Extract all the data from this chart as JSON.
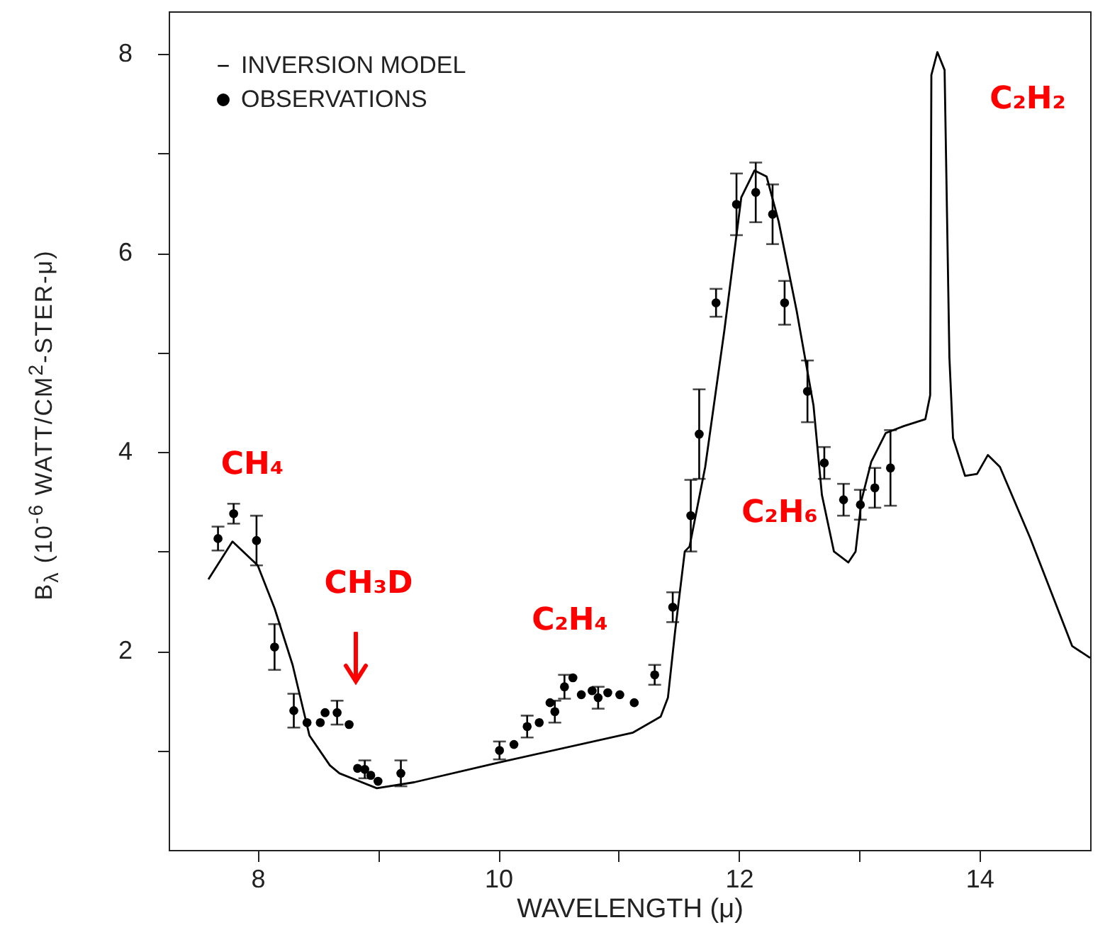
{
  "chart_data": {
    "type": "line",
    "xlabel": "WAVELENGTH (μ)",
    "ylabel": "B$_{λ}$ (10$^{-6}$ WATT/CM$^{2}$-STER-μ)",
    "xlim": [
      7.26,
      14.92
    ],
    "ylim": [
      0,
      8.43
    ],
    "xticks": [
      8,
      {
        "value": 9,
        "label": null
      },
      10,
      {
        "value": 11,
        "label": null
      },
      12,
      {
        "value": 13,
        "label": null
      },
      14
    ],
    "yticks": [
      {
        "value": 1,
        "label": null
      },
      2,
      {
        "value": 3,
        "label": null
      },
      4,
      {
        "value": 5,
        "label": null
      },
      6,
      {
        "value": 7,
        "label": null
      },
      8
    ],
    "grid": false,
    "legend": "top left",
    "series": [
      {
        "name": "INVERSION MODEL",
        "color": "#000000",
        "marker": "none",
        "line_style": "solid",
        "x": [
          7.59,
          7.79,
          8.0,
          8.14,
          8.29,
          8.43,
          8.6,
          8.68,
          8.99,
          9.3,
          10.01,
          11.12,
          11.35,
          11.41,
          11.47,
          11.55,
          11.59,
          11.72,
          11.88,
          12.02,
          12.13,
          12.23,
          12.33,
          12.48,
          12.62,
          12.69,
          12.79,
          12.91,
          12.97,
          13.02,
          13.1,
          13.22,
          13.37,
          13.55,
          13.59,
          13.6,
          13.65,
          13.71,
          13.75,
          13.78,
          13.88,
          13.98,
          14.07,
          14.17,
          14.42,
          14.77,
          14.92
        ],
        "values": [
          2.72,
          3.1,
          2.86,
          2.43,
          1.86,
          1.15,
          0.85,
          0.77,
          0.62,
          0.68,
          0.88,
          1.18,
          1.34,
          1.53,
          2.2,
          3.0,
          3.05,
          3.85,
          5.23,
          6.56,
          6.83,
          6.77,
          6.32,
          5.42,
          4.47,
          3.57,
          3.0,
          2.89,
          3.0,
          3.52,
          3.9,
          4.19,
          4.26,
          4.33,
          4.57,
          7.79,
          8.02,
          7.84,
          4.95,
          4.14,
          3.76,
          3.78,
          3.97,
          3.85,
          3.14,
          2.05,
          1.93
        ]
      },
      {
        "name": "OBSERVATIONS",
        "type": "scatter",
        "color": "#000000",
        "marker": "circle",
        "x": [
          7.67,
          7.8,
          7.99,
          8.14,
          8.3,
          8.41,
          8.52,
          8.56,
          8.66,
          8.76,
          8.83,
          8.89,
          8.94,
          9.0,
          9.19,
          10.01,
          10.13,
          10.24,
          10.34,
          10.43,
          10.47,
          10.55,
          10.62,
          10.69,
          10.78,
          10.83,
          10.91,
          11.01,
          11.13,
          11.3,
          11.45,
          11.6,
          11.67,
          11.81,
          11.98,
          12.14,
          12.28,
          12.38,
          12.57,
          12.71,
          12.87,
          13.01,
          13.13,
          13.26
        ],
        "values": [
          3.13,
          3.38,
          3.11,
          2.04,
          1.4,
          1.28,
          1.28,
          1.38,
          1.38,
          1.26,
          0.82,
          0.81,
          0.75,
          0.69,
          0.77,
          1.0,
          1.06,
          1.24,
          1.28,
          1.48,
          1.39,
          1.64,
          1.73,
          1.56,
          1.6,
          1.53,
          1.58,
          1.56,
          1.48,
          1.76,
          2.44,
          3.36,
          4.18,
          5.5,
          6.49,
          6.61,
          6.39,
          5.5,
          4.61,
          3.89,
          3.52,
          3.47,
          3.64,
          3.84
        ],
        "errors": [
          0.12,
          0.1,
          0.25,
          0.23,
          0.17,
          null,
          null,
          null,
          0.12,
          null,
          null,
          0.09,
          null,
          null,
          0.13,
          0.09,
          null,
          0.11,
          null,
          null,
          0.11,
          0.12,
          null,
          null,
          null,
          0.11,
          null,
          null,
          null,
          0.1,
          0.15,
          0.36,
          0.45,
          0.14,
          0.31,
          0.3,
          0.3,
          0.22,
          0.31,
          0.16,
          0.16,
          0.15,
          0.2,
          0.38
        ]
      }
    ],
    "annotations": [
      "CH₄",
      "CH₃D",
      "C₂H₄",
      "C₂H₆",
      "C₂H₂"
    ]
  }
}
